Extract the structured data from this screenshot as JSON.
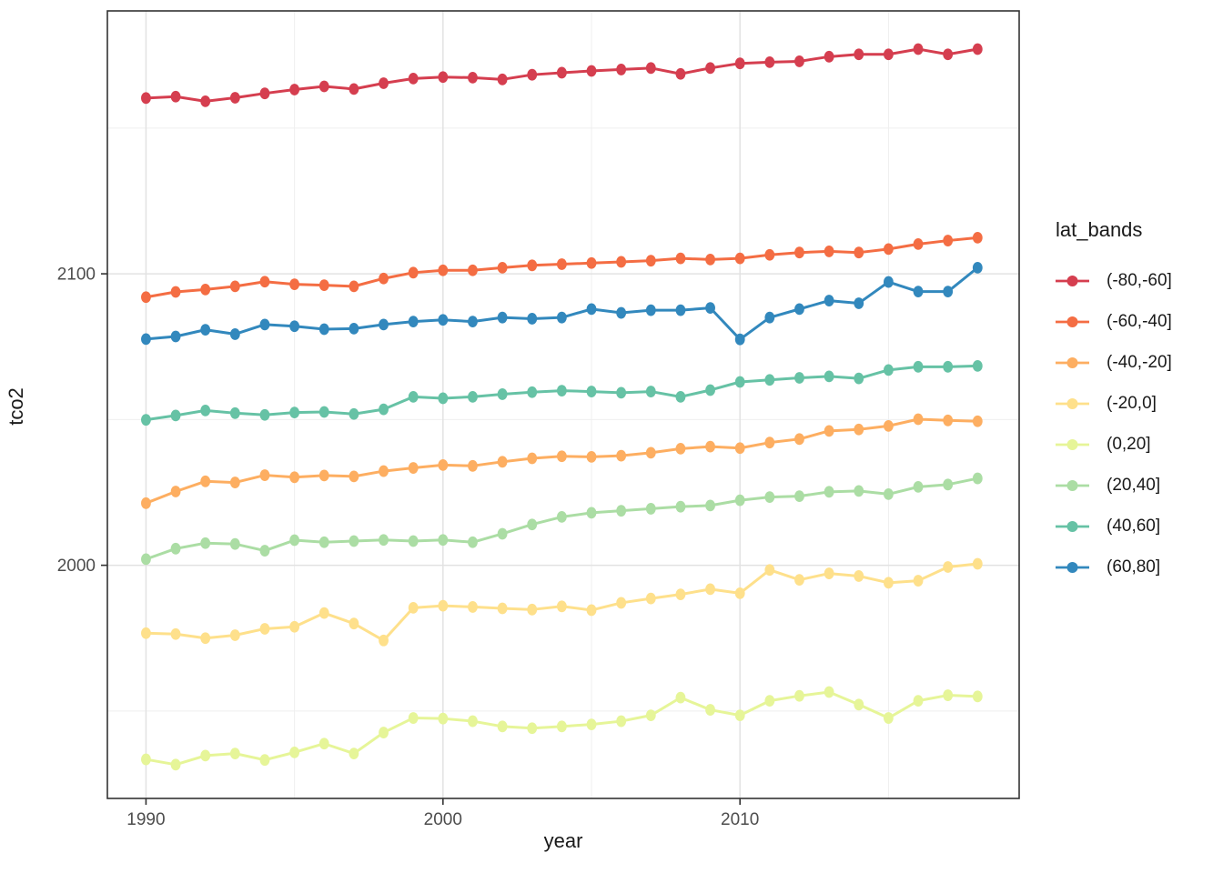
{
  "chart_data": {
    "type": "line",
    "xlabel": "year",
    "ylabel": "tco2",
    "legend_title": "lat_bands",
    "legend_position": "right",
    "grid": true,
    "x": [
      1990,
      1991,
      1992,
      1993,
      1994,
      1995,
      1996,
      1997,
      1998,
      1999,
      2000,
      2001,
      2002,
      2003,
      2004,
      2005,
      2006,
      2007,
      2008,
      2009,
      2010,
      2011,
      2012,
      2013,
      2014,
      2015,
      2016,
      2017,
      2018
    ],
    "x_tick_labels": [
      "1990",
      "2000",
      "2010"
    ],
    "x_ticks": [
      1990,
      2000,
      2010
    ],
    "x_minor": [
      1995,
      2005,
      2015
    ],
    "y_tick_labels": [
      "2100",
      "2000"
    ],
    "y_ticks": [
      2100,
      2000
    ],
    "y_minor": [
      2150,
      2050,
      1950
    ],
    "xlim": [
      1988.7,
      2019.4
    ],
    "ylim": [
      1920.0,
      2190.2
    ],
    "series": [
      {
        "name": "(-80,-60]",
        "color": "#d53e4f",
        "values": [
          2160.3,
          2160.8,
          2159.2,
          2160.4,
          2161.9,
          2163.2,
          2164.3,
          2163.4,
          2165.4,
          2167.0,
          2167.5,
          2167.3,
          2166.7,
          2168.3,
          2169.0,
          2169.6,
          2170.1,
          2170.6,
          2168.6,
          2170.6,
          2172.2,
          2172.6,
          2172.9,
          2174.5,
          2175.3,
          2175.3,
          2177.1,
          2175.3,
          2177.1
        ]
      },
      {
        "name": "(-60,-40]",
        "color": "#f46d43",
        "values": [
          2092.0,
          2093.8,
          2094.6,
          2095.7,
          2097.3,
          2096.4,
          2096.1,
          2095.7,
          2098.4,
          2100.4,
          2101.2,
          2101.2,
          2102.1,
          2102.9,
          2103.3,
          2103.7,
          2104.1,
          2104.5,
          2105.3,
          2104.9,
          2105.3,
          2106.5,
          2107.3,
          2107.7,
          2107.3,
          2108.5,
          2110.2,
          2111.4,
          2112.4
        ]
      },
      {
        "name": "(-40,-20]",
        "color": "#fdae61",
        "values": [
          2021.3,
          2025.3,
          2028.8,
          2028.4,
          2030.9,
          2030.2,
          2030.8,
          2030.5,
          2032.3,
          2033.4,
          2034.4,
          2034.1,
          2035.5,
          2036.7,
          2037.4,
          2037.2,
          2037.6,
          2038.6,
          2040.0,
          2040.7,
          2040.2,
          2042.1,
          2043.3,
          2046.1,
          2046.6,
          2047.8,
          2050.1,
          2049.7,
          2049.4
        ]
      },
      {
        "name": "(-20,0]",
        "color": "#fee08b",
        "values": [
          1976.7,
          1976.4,
          1975.0,
          1976.0,
          1978.2,
          1978.9,
          1983.6,
          1980.0,
          1974.2,
          1985.4,
          1986.1,
          1985.7,
          1985.2,
          1984.8,
          1985.9,
          1984.6,
          1987.1,
          1988.6,
          1990.0,
          1991.8,
          1990.4,
          1998.4,
          1995.0,
          1997.2,
          1996.3,
          1994.0,
          1994.7,
          1999.4,
          2000.5
        ]
      },
      {
        "name": "(0,20]",
        "color": "#e6f598",
        "values": [
          1933.4,
          1931.6,
          1934.7,
          1935.4,
          1933.2,
          1935.8,
          1938.8,
          1935.4,
          1942.6,
          1947.6,
          1947.4,
          1946.5,
          1944.7,
          1944.1,
          1944.7,
          1945.4,
          1946.5,
          1948.5,
          1954.6,
          1950.4,
          1948.5,
          1953.5,
          1955.2,
          1956.5,
          1952.2,
          1947.6,
          1953.5,
          1955.4,
          1955.0
        ]
      },
      {
        "name": "(20,40]",
        "color": "#abdda4",
        "values": [
          2002.1,
          2005.7,
          2007.6,
          2007.3,
          2005.0,
          2008.6,
          2007.9,
          2008.3,
          2008.7,
          2008.3,
          2008.7,
          2007.9,
          2010.8,
          2014.0,
          2016.6,
          2018.0,
          2018.7,
          2019.4,
          2020.1,
          2020.5,
          2022.3,
          2023.4,
          2023.7,
          2025.2,
          2025.5,
          2024.4,
          2026.9,
          2027.7,
          2029.8
        ]
      },
      {
        "name": "(40,60]",
        "color": "#66c2a5",
        "values": [
          2049.9,
          2051.4,
          2053.1,
          2052.2,
          2051.6,
          2052.4,
          2052.6,
          2051.9,
          2053.5,
          2057.8,
          2057.3,
          2057.8,
          2058.7,
          2059.4,
          2059.9,
          2059.6,
          2059.2,
          2059.6,
          2057.8,
          2060.1,
          2062.9,
          2063.6,
          2064.3,
          2064.8,
          2064.1,
          2067.0,
          2068.1,
          2068.1,
          2068.4
        ]
      },
      {
        "name": "(60,80]",
        "color": "#3288bd",
        "values": [
          2077.6,
          2078.5,
          2080.8,
          2079.3,
          2082.6,
          2082.0,
          2081.0,
          2081.2,
          2082.6,
          2083.6,
          2084.2,
          2083.6,
          2085.0,
          2084.6,
          2085.0,
          2087.9,
          2086.6,
          2087.5,
          2087.5,
          2088.3,
          2077.5,
          2085.0,
          2087.9,
          2090.8,
          2089.9,
          2097.2,
          2093.9,
          2093.9,
          2102.1
        ]
      }
    ],
    "style": {
      "major_grid_color": "#e2e2e2",
      "minor_grid_color": "#efefef",
      "panel_border_color": "#333333",
      "tick_label_color": "#4d4d4d"
    }
  }
}
